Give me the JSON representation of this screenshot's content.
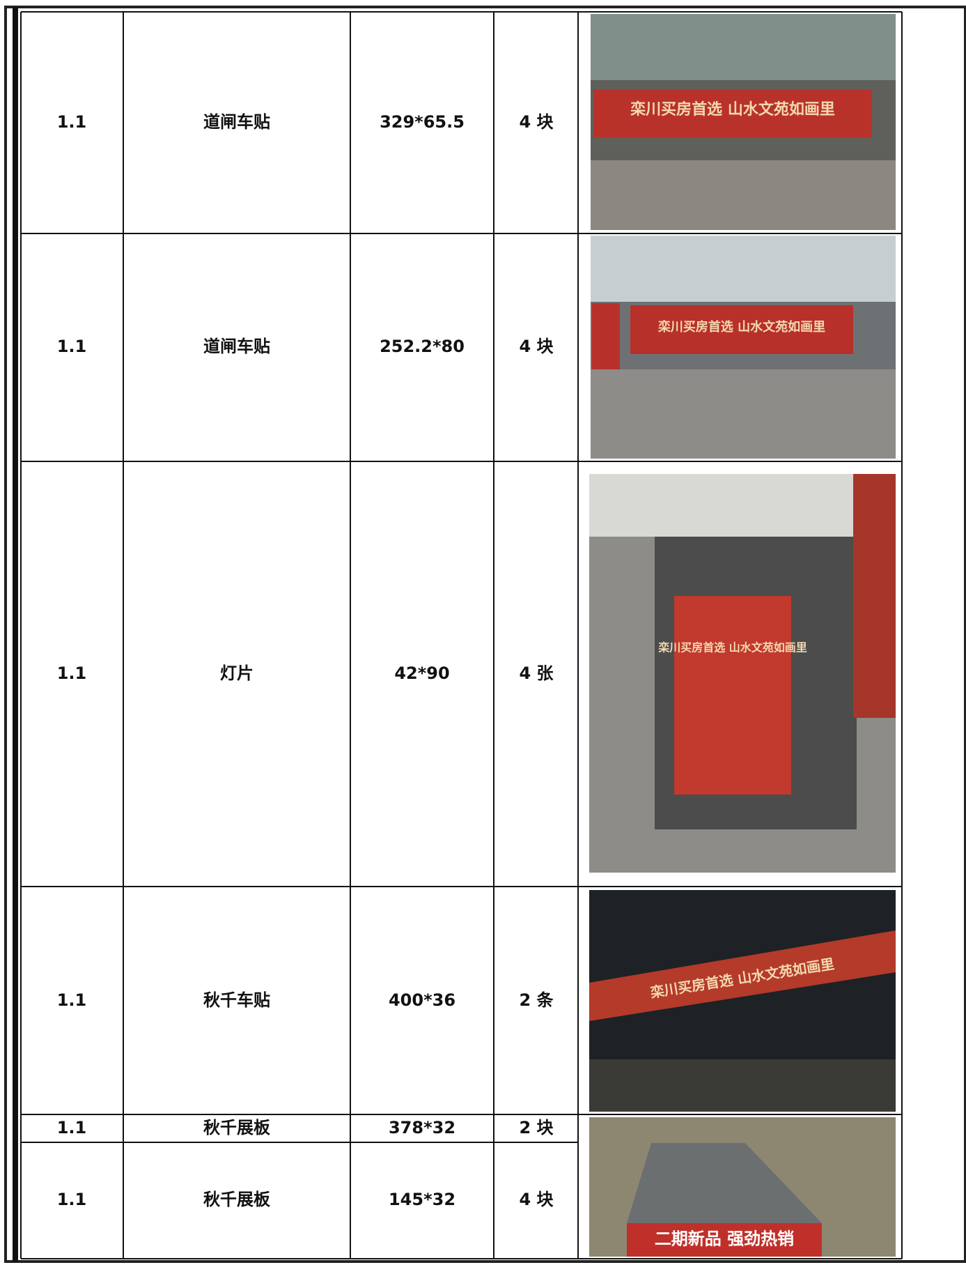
{
  "table": {
    "rows": [
      [
        "1.1",
        "道闸车贴",
        "329*65.5",
        "4 块"
      ],
      [
        "1.1",
        "道闸车贴",
        "252.2*80",
        "4 块"
      ],
      [
        "1.1",
        "灯片",
        "42*90",
        "4 张"
      ],
      [
        "1.1",
        "秋千车贴",
        "400*36",
        "2 条"
      ],
      [
        "1.1",
        "秋千展板",
        "378*32",
        "2 块"
      ],
      [
        "1.1",
        "秋千展板",
        "145*32",
        "4 块"
      ]
    ]
  },
  "photos": {
    "captions": [
      "栾川买房首选 山水文苑如画里",
      "栾川买房首选 山水文苑如画里",
      "栾川买房首选 山水文苑如画里",
      "栾川买房首选 山水文苑如画里",
      "二期新品 强劲热销"
    ]
  }
}
